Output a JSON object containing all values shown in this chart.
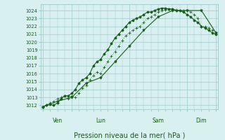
{
  "bg_color": "#d8f0f0",
  "grid_color": "#a0c8c8",
  "line_color_dark": "#1a5c1a",
  "line_color_mid": "#2d8b2d",
  "xlabel": "Pression niveau de la mer( hPa )",
  "xlabel_fontsize": 7,
  "ytick_labels": [
    1012,
    1013,
    1014,
    1015,
    1016,
    1017,
    1018,
    1019,
    1020,
    1021,
    1022,
    1023,
    1024
  ],
  "ylim": [
    1011.5,
    1024.8
  ],
  "xlim": [
    -2,
    146
  ],
  "xtick_positions": [
    0,
    24,
    72,
    120,
    144
  ],
  "xtick_labels": [
    "Ven",
    "Lun",
    "Sam",
    "Dim"
  ],
  "xtick_label_positions": [
    12,
    48,
    96,
    132
  ],
  "series1_x": [
    0,
    3,
    6,
    9,
    12,
    15,
    18,
    21,
    24,
    27,
    30,
    33,
    36,
    39,
    42,
    45,
    48,
    51,
    54,
    57,
    60,
    63,
    66,
    69,
    72,
    75,
    78,
    81,
    84,
    87,
    90,
    93,
    96,
    99,
    102,
    105,
    108,
    111,
    114,
    117,
    120,
    123,
    126,
    129,
    132,
    135,
    138,
    141,
    144
  ],
  "series1_y": [
    1011.8,
    1012.0,
    1012.3,
    1012.5,
    1012.8,
    1013.0,
    1013.2,
    1012.8,
    1013.2,
    1013.0,
    1013.5,
    1014.2,
    1014.5,
    1015.2,
    1015.8,
    1016.2,
    1016.0,
    1016.8,
    1017.5,
    1018.2,
    1018.8,
    1019.5,
    1020.2,
    1020.8,
    1021.2,
    1021.5,
    1021.8,
    1022.0,
    1022.5,
    1023.0,
    1023.2,
    1023.5,
    1023.8,
    1024.0,
    1024.1,
    1024.2,
    1024.2,
    1024.1,
    1024.0,
    1024.0,
    1024.0,
    1023.8,
    1023.5,
    1023.0,
    1022.0,
    1022.0,
    1021.8,
    1021.5,
    1021.2
  ],
  "series2_x": [
    0,
    3,
    6,
    9,
    12,
    15,
    18,
    21,
    24,
    27,
    30,
    33,
    36,
    39,
    42,
    45,
    48,
    51,
    54,
    57,
    60,
    63,
    66,
    69,
    72,
    75,
    78,
    81,
    84,
    87,
    90,
    93,
    96,
    99,
    102,
    105,
    108,
    111,
    114,
    117,
    120,
    123,
    126,
    129,
    132,
    135,
    138,
    141,
    144
  ],
  "series2_y": [
    1011.8,
    1012.0,
    1012.1,
    1012.0,
    1012.3,
    1012.8,
    1013.2,
    1013.2,
    1013.5,
    1014.0,
    1014.8,
    1015.2,
    1015.5,
    1016.0,
    1017.0,
    1017.5,
    1017.8,
    1018.5,
    1019.0,
    1019.8,
    1020.5,
    1021.0,
    1021.5,
    1022.0,
    1022.5,
    1022.8,
    1023.0,
    1023.2,
    1023.5,
    1023.8,
    1023.8,
    1024.0,
    1024.2,
    1024.3,
    1024.3,
    1024.2,
    1024.2,
    1024.0,
    1024.0,
    1023.8,
    1023.5,
    1023.2,
    1022.8,
    1022.5,
    1022.0,
    1021.8,
    1021.5,
    1021.2,
    1021.0
  ],
  "series3_x": [
    0,
    12,
    24,
    36,
    48,
    60,
    72,
    84,
    96,
    108,
    120,
    132,
    144
  ],
  "series3_y": [
    1011.8,
    1012.5,
    1013.0,
    1014.8,
    1015.5,
    1017.5,
    1019.5,
    1021.5,
    1023.2,
    1024.0,
    1024.0,
    1024.0,
    1021.2
  ]
}
